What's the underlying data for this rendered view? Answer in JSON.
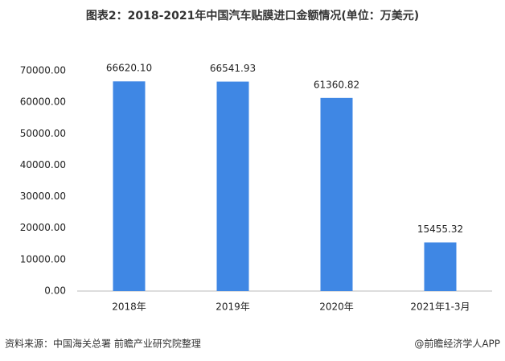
{
  "chart_data": {
    "type": "bar",
    "title": "图表2：2018-2021年中国汽车贴膜进口金额情况(单位：万美元)",
    "categories": [
      "2018年",
      "2019年",
      "2020年",
      "2021年1-3月"
    ],
    "values": [
      66620.1,
      66541.93,
      61360.82,
      15455.32
    ],
    "value_labels": [
      "66620.10",
      "66541.93",
      "61360.82",
      "15455.32"
    ],
    "color": "#3f87e4",
    "ylim": [
      0,
      70000
    ],
    "yticks": [
      {
        "value": 0,
        "label": "0.00"
      },
      {
        "value": 10000,
        "label": "10000.00"
      },
      {
        "value": 20000,
        "label": "20000.00"
      },
      {
        "value": 30000,
        "label": "30000.00"
      },
      {
        "value": 40000,
        "label": "40000.00"
      },
      {
        "value": 50000,
        "label": "50000.00"
      },
      {
        "value": 60000,
        "label": "60000.00"
      },
      {
        "value": 70000,
        "label": "70000.00"
      }
    ],
    "grid": false,
    "source": "资料来源：中国海关总署 前瞻产业研究院整理",
    "footer": "@前瞻经济学人APP"
  }
}
